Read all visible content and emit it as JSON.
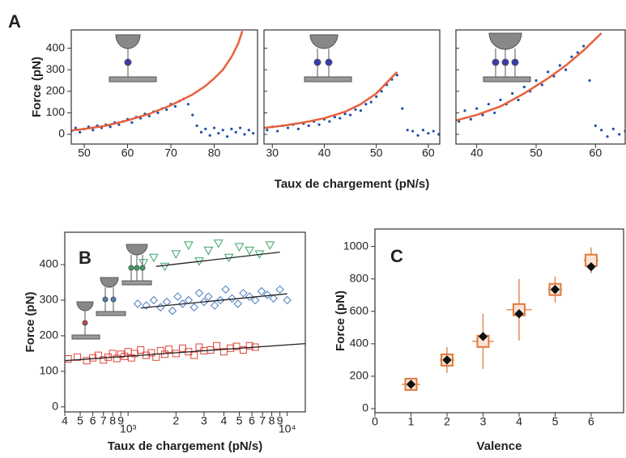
{
  "chart_data": [
    {
      "type": "scatter",
      "panel_label": "A",
      "ylabel": "Force (pN)",
      "xlim": [
        47,
        90
      ],
      "ylim": [
        -45,
        485
      ],
      "xticks": [
        50,
        60,
        70,
        80
      ],
      "yticks": [
        0,
        100,
        200,
        300,
        400
      ],
      "series": [
        {
          "type": "scatter",
          "marker": "circle",
          "filled": true,
          "color": "#1f4fa8",
          "x": [
            47,
            48,
            49,
            50,
            51,
            52,
            53,
            54,
            55,
            56,
            57,
            58,
            59,
            60,
            61,
            62,
            63,
            64,
            65,
            66,
            67,
            68,
            69,
            70,
            71,
            72,
            73,
            74,
            75,
            76,
            77,
            78,
            79,
            80,
            81,
            82,
            83,
            84,
            85,
            86,
            87,
            88,
            89
          ],
          "values": [
            15,
            30,
            10,
            25,
            35,
            20,
            40,
            30,
            45,
            35,
            55,
            45,
            60,
            70,
            55,
            80,
            75,
            95,
            85,
            105,
            100,
            120,
            115,
            140,
            130,
            155,
            165,
            140,
            90,
            40,
            10,
            25,
            -5,
            30,
            5,
            20,
            -10,
            25,
            10,
            30,
            0,
            20,
            5
          ]
        },
        {
          "type": "line",
          "color": "#e8603c",
          "x": [
            47,
            50,
            55,
            60,
            65,
            70,
            75,
            78,
            80,
            82,
            84,
            85.5,
            86.5
          ],
          "values": [
            18,
            25,
            40,
            65,
            95,
            135,
            185,
            225,
            260,
            300,
            360,
            420,
            480
          ]
        }
      ]
    },
    {
      "type": "scatter",
      "xlabel": "Taux de chargement (pN/s)",
      "xlim": [
        28.4,
        62.2
      ],
      "ylim": [
        -45,
        485
      ],
      "xticks": [
        30,
        40,
        50,
        60
      ],
      "series": [
        {
          "type": "scatter",
          "marker": "circle",
          "filled": true,
          "color": "#1f4fa8",
          "x": [
            29,
            30,
            31,
            32,
            33,
            34,
            35,
            36,
            37,
            38,
            39,
            40,
            41,
            42,
            43,
            44,
            45,
            46,
            47,
            48,
            49,
            50,
            51,
            52,
            53,
            54,
            55,
            56,
            57,
            58,
            59,
            60,
            61,
            62
          ],
          "values": [
            20,
            35,
            15,
            40,
            30,
            45,
            25,
            50,
            40,
            60,
            45,
            70,
            60,
            80,
            75,
            95,
            90,
            115,
            110,
            140,
            150,
            175,
            200,
            230,
            255,
            275,
            120,
            20,
            15,
            -5,
            20,
            5,
            15,
            0
          ]
        },
        {
          "type": "line",
          "color": "#e8603c",
          "x": [
            28.5,
            32,
            36,
            40,
            44,
            47,
            50,
            52,
            54
          ],
          "values": [
            30,
            40,
            55,
            75,
            105,
            140,
            190,
            240,
            290
          ]
        }
      ]
    },
    {
      "type": "scatter",
      "xlim": [
        36.5,
        65
      ],
      "ylim": [
        -45,
        485
      ],
      "xticks": [
        40,
        50,
        60
      ],
      "series": [
        {
          "type": "scatter",
          "marker": "circle",
          "filled": true,
          "color": "#1f4fa8",
          "x": [
            37,
            38,
            39,
            40,
            41,
            42,
            43,
            44,
            45,
            46,
            47,
            48,
            49,
            50,
            51,
            52,
            53,
            54,
            55,
            56,
            57,
            58,
            59,
            60,
            61,
            62,
            63,
            64,
            65
          ],
          "values": [
            60,
            110,
            70,
            120,
            90,
            140,
            100,
            160,
            140,
            190,
            160,
            220,
            200,
            250,
            230,
            290,
            270,
            320,
            300,
            360,
            380,
            410,
            250,
            40,
            20,
            -10,
            25,
            0,
            15
          ]
        },
        {
          "type": "line",
          "color": "#e8603c",
          "x": [
            36.5,
            40,
            44,
            48,
            52,
            55,
            58,
            61
          ],
          "values": [
            65,
            90,
            130,
            190,
            260,
            320,
            390,
            470
          ]
        }
      ]
    },
    {
      "type": "scatter",
      "panel_label": "B",
      "ylabel": "Force (pN)",
      "xlabel": "Taux de chargement (pN/s)",
      "xscale": "log",
      "xlim": [
        400,
        13000
      ],
      "ylim": [
        -14,
        491
      ],
      "xticks": [
        {
          "value": 400,
          "label": "4"
        },
        {
          "value": 500,
          "label": "5"
        },
        {
          "value": 600,
          "label": "6"
        },
        {
          "value": 700,
          "label": "7"
        },
        {
          "value": 800,
          "label": "8"
        },
        {
          "value": 900,
          "label": "9"
        },
        {
          "value": 1000,
          "label": "10³"
        },
        {
          "value": 2000,
          "label": "2"
        },
        {
          "value": 3000,
          "label": "3"
        },
        {
          "value": 4000,
          "label": "4"
        },
        {
          "value": 5000,
          "label": "5"
        },
        {
          "value": 6000,
          "label": "6"
        },
        {
          "value": 7000,
          "label": "7"
        },
        {
          "value": 8000,
          "label": "8"
        },
        {
          "value": 9000,
          "label": "9"
        },
        {
          "value": 10000,
          "label": "10⁴"
        }
      ],
      "yticks": [
        0,
        100,
        200,
        300,
        400
      ],
      "series": [
        {
          "type": "scatter",
          "marker": "square",
          "color": "#e0443a",
          "x": [
            420,
            480,
            550,
            600,
            650,
            700,
            750,
            800,
            850,
            900,
            950,
            1000,
            1050,
            1100,
            1200,
            1300,
            1400,
            1500,
            1600,
            1700,
            1800,
            2000,
            2200,
            2400,
            2600,
            2800,
            3000,
            3300,
            3600,
            4000,
            4400,
            4800,
            5300,
            5800,
            6300
          ],
          "values": [
            135,
            140,
            130,
            138,
            145,
            132,
            140,
            150,
            136,
            148,
            142,
            155,
            138,
            150,
            160,
            145,
            152,
            140,
            158,
            148,
            162,
            150,
            165,
            155,
            145,
            168,
            158,
            160,
            172,
            155,
            165,
            170,
            160,
            172,
            168
          ]
        },
        {
          "type": "scatter",
          "marker": "diamond",
          "color": "#4a7cc0",
          "x": [
            1150,
            1300,
            1450,
            1600,
            1750,
            1900,
            2050,
            2200,
            2400,
            2600,
            2800,
            3000,
            3200,
            3500,
            3800,
            4100,
            4500,
            4900,
            5300,
            5800,
            6300,
            6900,
            7500,
            8200,
            9000,
            10000
          ],
          "values": [
            290,
            285,
            300,
            280,
            295,
            270,
            310,
            290,
            300,
            280,
            320,
            295,
            310,
            285,
            300,
            330,
            305,
            290,
            320,
            310,
            300,
            325,
            315,
            305,
            330,
            300
          ]
        },
        {
          "type": "scatter",
          "marker": "triangle-down",
          "color": "#3aa36a",
          "x": [
            1250,
            1450,
            1700,
            2000,
            2400,
            2800,
            3200,
            3700,
            4300,
            5000,
            5800,
            6700,
            7800
          ],
          "values": [
            405,
            420,
            395,
            430,
            455,
            410,
            440,
            460,
            420,
            450,
            440,
            430,
            455
          ]
        },
        {
          "type": "line",
          "color": "#222222",
          "x": [
            400,
            13000
          ],
          "values": [
            130,
            178
          ]
        },
        {
          "type": "line",
          "color": "#222222",
          "x": [
            1200,
            10000
          ],
          "values": [
            278,
            318
          ]
        },
        {
          "type": "line",
          "color": "#222222",
          "x": [
            1500,
            9000
          ],
          "values": [
            395,
            435
          ]
        }
      ]
    },
    {
      "type": "scatter",
      "panel_label": "C",
      "ylabel": "Force (pN)",
      "xlabel": "Valence",
      "xlim": [
        0,
        6.9
      ],
      "ylim": [
        -25,
        1108
      ],
      "xticks": [
        0,
        1,
        2,
        3,
        4,
        5,
        6
      ],
      "yticks": [
        0,
        200,
        400,
        600,
        800,
        1000
      ],
      "series": [
        {
          "type": "scatter",
          "marker": "square",
          "color": "#e07a3c",
          "x": [
            1,
            2,
            3,
            4,
            5,
            6
          ],
          "values": [
            150,
            300,
            415,
            610,
            735,
            915
          ],
          "error": [
            30,
            80,
            170,
            190,
            80,
            80
          ],
          "xerr": [
            0.25,
            0.2,
            0.3,
            0.35,
            0.2,
            0.2
          ]
        },
        {
          "type": "scatter",
          "marker": "diamond",
          "filled": true,
          "color": "#111111",
          "x": [
            1,
            2,
            3,
            4,
            5,
            6
          ],
          "values": [
            150,
            300,
            445,
            585,
            735,
            875
          ]
        }
      ]
    }
  ]
}
